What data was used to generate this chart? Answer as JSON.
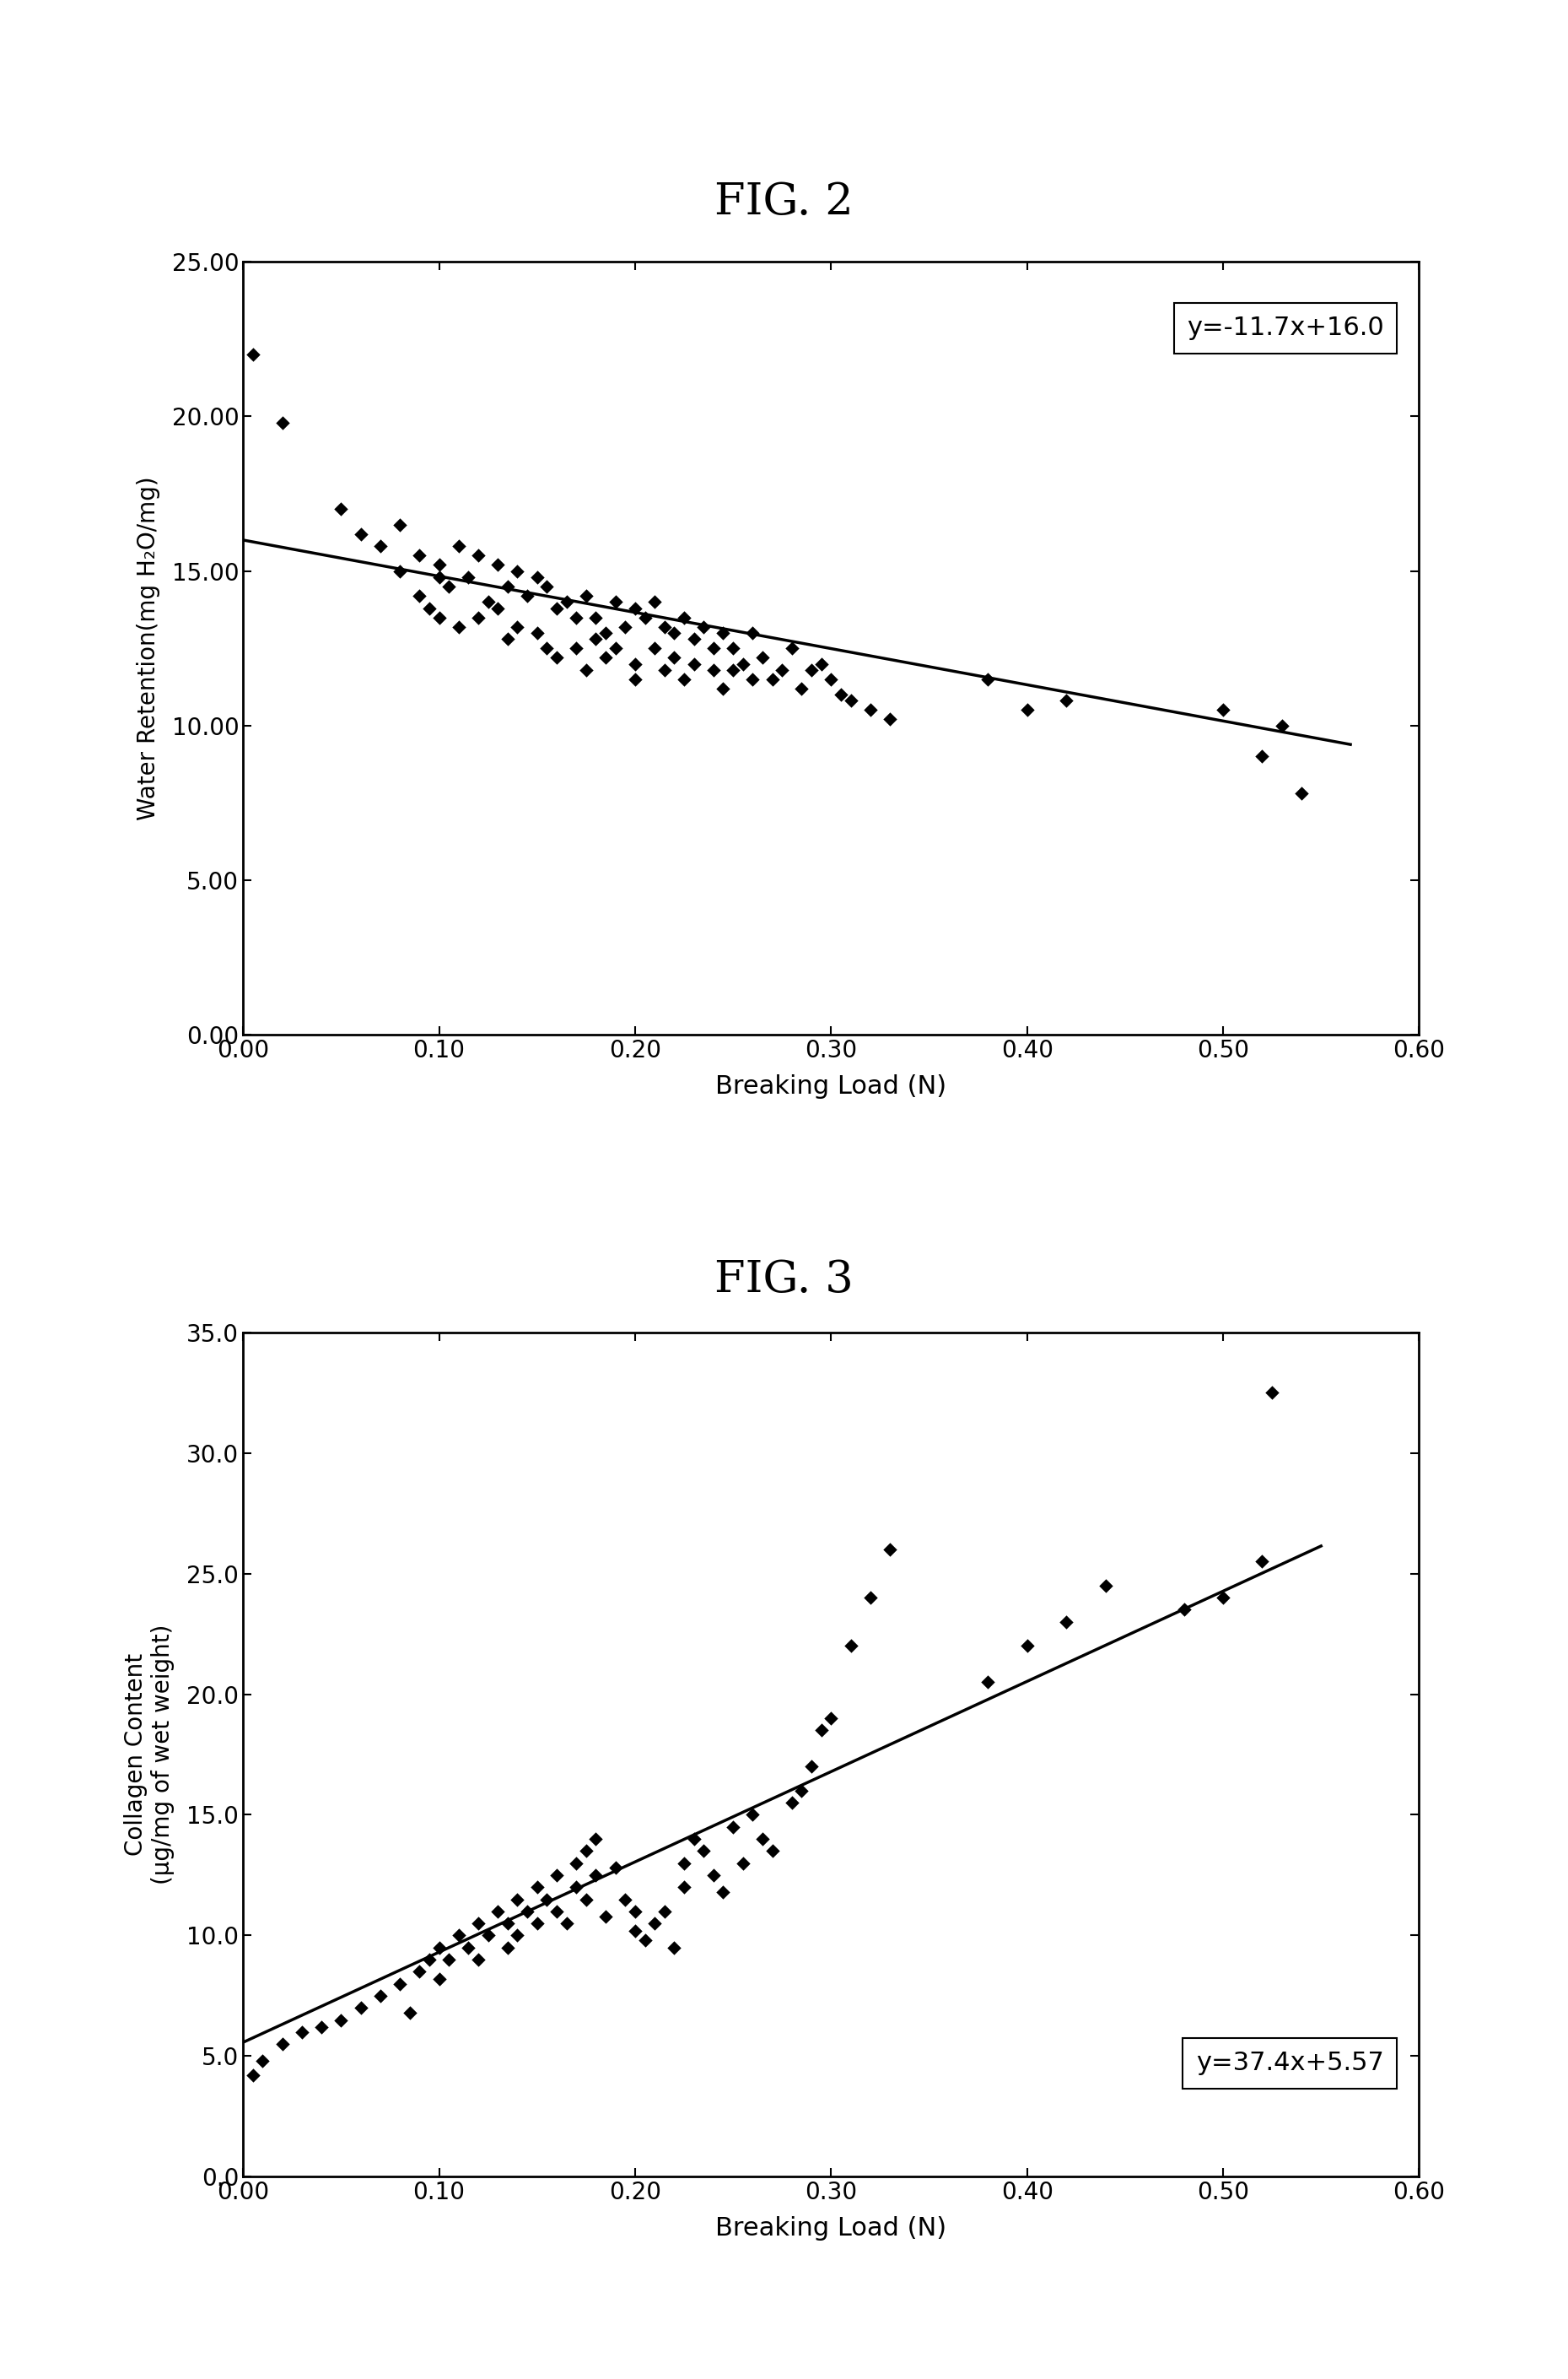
{
  "fig2_title": "FIG. 2",
  "fig3_title": "FIG. 3",
  "fig2_xlabel": "Breaking Load (N)",
  "fig2_ylabel": "Water Retention(mg H₂O/mg)",
  "fig3_xlabel": "Breaking Load (N)",
  "fig3_ylabel": "Collagen Content\n(μg/mg of wet weight)",
  "fig2_equation": "y=-11.7x+16.0",
  "fig3_equation": "y=37.4x+5.57",
  "fig2_slope": -11.7,
  "fig2_intercept": 16.0,
  "fig3_slope": 37.4,
  "fig3_intercept": 5.57,
  "fig2_xlim": [
    0.0,
    0.6
  ],
  "fig2_ylim": [
    0.0,
    25.0
  ],
  "fig3_xlim": [
    0.0,
    0.6
  ],
  "fig3_ylim": [
    0.0,
    35.0
  ],
  "fig2_xticks": [
    0.0,
    0.1,
    0.2,
    0.3,
    0.4,
    0.5,
    0.6
  ],
  "fig2_yticks": [
    0.0,
    5.0,
    10.0,
    15.0,
    20.0,
    25.0
  ],
  "fig3_xticks": [
    0.0,
    0.1,
    0.2,
    0.3,
    0.4,
    0.5,
    0.6
  ],
  "fig3_yticks": [
    0.0,
    5.0,
    10.0,
    15.0,
    20.0,
    25.0,
    30.0,
    35.0
  ],
  "scatter_color": "#000000",
  "line_color": "#000000",
  "background_color": "#ffffff",
  "fig2_scatter_x": [
    0.005,
    0.02,
    0.05,
    0.06,
    0.07,
    0.08,
    0.08,
    0.09,
    0.09,
    0.095,
    0.1,
    0.1,
    0.1,
    0.105,
    0.11,
    0.11,
    0.115,
    0.12,
    0.12,
    0.125,
    0.13,
    0.13,
    0.135,
    0.135,
    0.14,
    0.14,
    0.145,
    0.15,
    0.15,
    0.155,
    0.155,
    0.16,
    0.16,
    0.165,
    0.17,
    0.17,
    0.175,
    0.175,
    0.18,
    0.18,
    0.185,
    0.185,
    0.19,
    0.19,
    0.195,
    0.2,
    0.2,
    0.2,
    0.205,
    0.21,
    0.21,
    0.215,
    0.215,
    0.22,
    0.22,
    0.225,
    0.225,
    0.23,
    0.23,
    0.235,
    0.24,
    0.24,
    0.245,
    0.245,
    0.25,
    0.25,
    0.255,
    0.26,
    0.26,
    0.265,
    0.27,
    0.275,
    0.28,
    0.285,
    0.29,
    0.295,
    0.3,
    0.305,
    0.31,
    0.32,
    0.33,
    0.38,
    0.4,
    0.42,
    0.5,
    0.52,
    0.53,
    0.54
  ],
  "fig2_scatter_y": [
    22.0,
    19.8,
    17.0,
    16.2,
    15.8,
    16.5,
    15.0,
    15.5,
    14.2,
    13.8,
    14.8,
    15.2,
    13.5,
    14.5,
    15.8,
    13.2,
    14.8,
    15.5,
    13.5,
    14.0,
    15.2,
    13.8,
    14.5,
    12.8,
    15.0,
    13.2,
    14.2,
    14.8,
    13.0,
    14.5,
    12.5,
    13.8,
    12.2,
    14.0,
    13.5,
    12.5,
    14.2,
    11.8,
    13.5,
    12.8,
    13.0,
    12.2,
    14.0,
    12.5,
    13.2,
    13.8,
    12.0,
    11.5,
    13.5,
    14.0,
    12.5,
    13.2,
    11.8,
    13.0,
    12.2,
    13.5,
    11.5,
    12.8,
    12.0,
    13.2,
    11.8,
    12.5,
    13.0,
    11.2,
    12.5,
    11.8,
    12.0,
    13.0,
    11.5,
    12.2,
    11.5,
    11.8,
    12.5,
    11.2,
    11.8,
    12.0,
    11.5,
    11.0,
    10.8,
    10.5,
    10.2,
    11.5,
    10.5,
    10.8,
    10.5,
    9.0,
    10.0,
    7.8
  ],
  "fig3_scatter_x": [
    0.005,
    0.01,
    0.02,
    0.03,
    0.04,
    0.05,
    0.06,
    0.07,
    0.08,
    0.085,
    0.09,
    0.095,
    0.1,
    0.1,
    0.105,
    0.11,
    0.115,
    0.12,
    0.12,
    0.125,
    0.13,
    0.135,
    0.135,
    0.14,
    0.14,
    0.145,
    0.15,
    0.15,
    0.155,
    0.16,
    0.16,
    0.165,
    0.17,
    0.17,
    0.175,
    0.175,
    0.18,
    0.18,
    0.185,
    0.19,
    0.195,
    0.2,
    0.2,
    0.205,
    0.21,
    0.215,
    0.22,
    0.225,
    0.225,
    0.23,
    0.235,
    0.24,
    0.245,
    0.25,
    0.255,
    0.26,
    0.265,
    0.27,
    0.28,
    0.285,
    0.29,
    0.295,
    0.3,
    0.31,
    0.32,
    0.33,
    0.38,
    0.4,
    0.42,
    0.44,
    0.48,
    0.5,
    0.52,
    0.525
  ],
  "fig3_scatter_y": [
    4.2,
    4.8,
    5.5,
    6.0,
    6.2,
    6.5,
    7.0,
    7.5,
    8.0,
    6.8,
    8.5,
    9.0,
    8.2,
    9.5,
    9.0,
    10.0,
    9.5,
    10.5,
    9.0,
    10.0,
    11.0,
    10.5,
    9.5,
    11.5,
    10.0,
    11.0,
    12.0,
    10.5,
    11.5,
    12.5,
    11.0,
    10.5,
    13.0,
    12.0,
    13.5,
    11.5,
    12.5,
    14.0,
    10.8,
    12.8,
    11.5,
    10.2,
    11.0,
    9.8,
    10.5,
    11.0,
    9.5,
    13.0,
    12.0,
    14.0,
    13.5,
    12.5,
    11.8,
    14.5,
    13.0,
    15.0,
    14.0,
    13.5,
    15.5,
    16.0,
    17.0,
    18.5,
    19.0,
    22.0,
    24.0,
    26.0,
    20.5,
    22.0,
    23.0,
    24.5,
    23.5,
    24.0,
    25.5,
    32.5
  ]
}
